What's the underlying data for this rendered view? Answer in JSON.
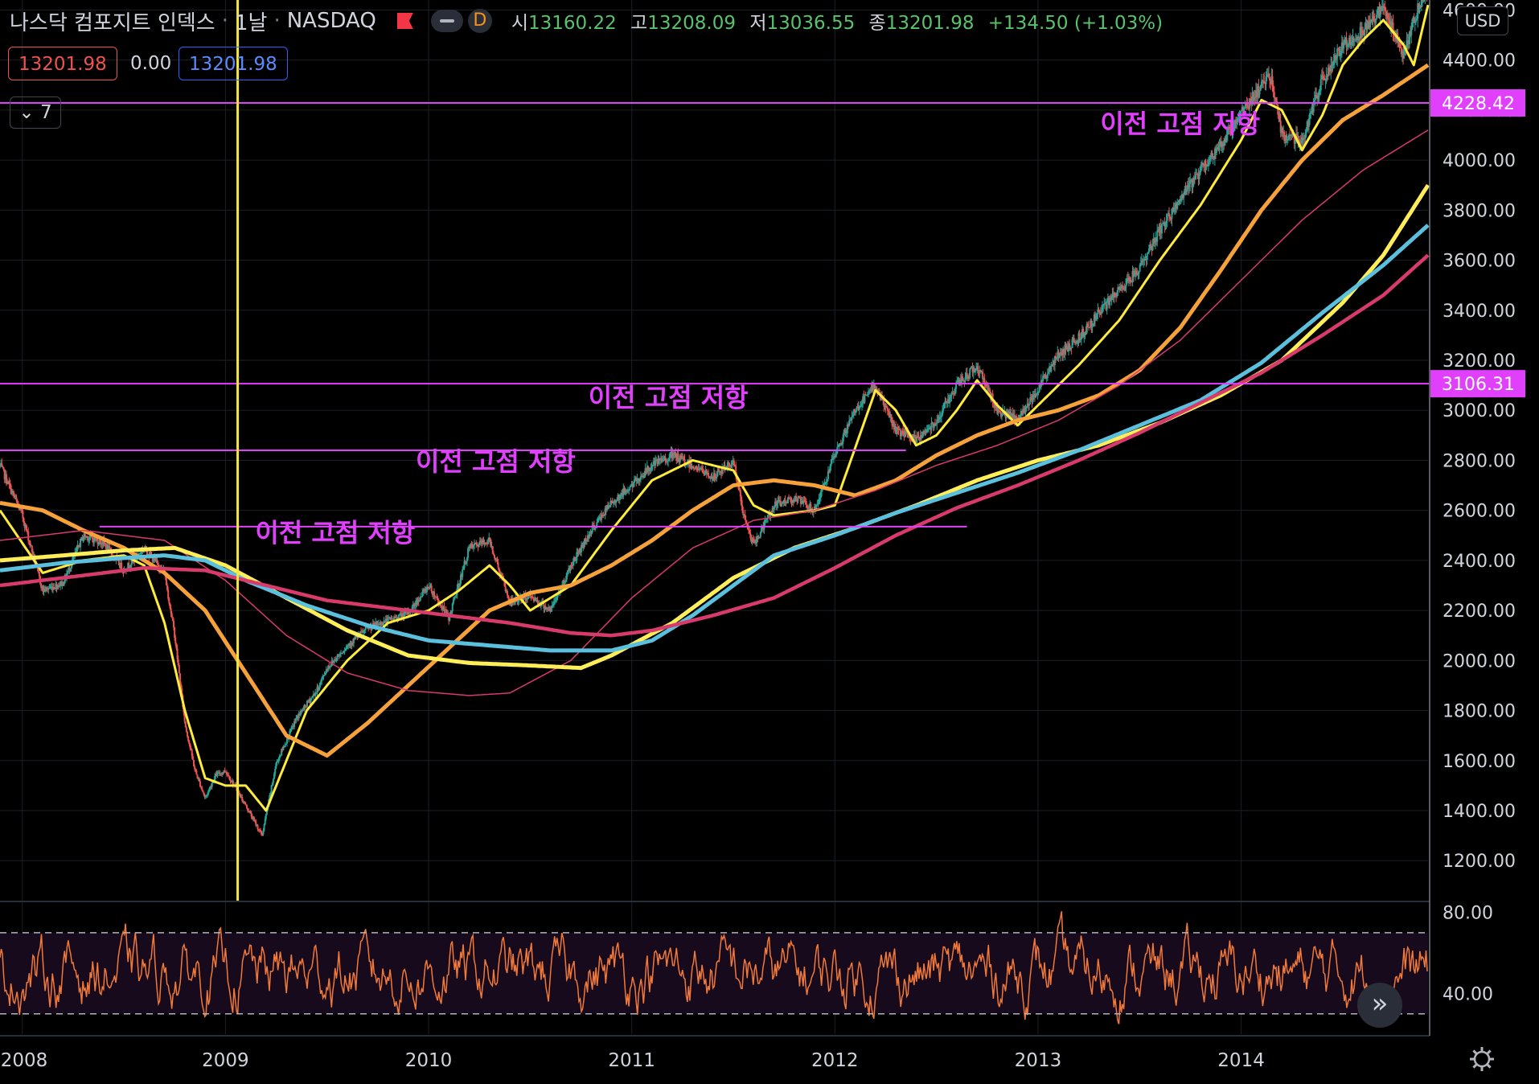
{
  "header": {
    "title": "나스닥 컴포지트 인덱스",
    "interval": "1날",
    "exchange": "NASDAQ",
    "interval_badge": "D",
    "ohlc": [
      {
        "k": "시",
        "v": "13160.22"
      },
      {
        "k": "고",
        "v": "13208.09"
      },
      {
        "k": "저",
        "v": "13036.55"
      },
      {
        "k": "종",
        "v": "13201.98"
      }
    ],
    "change": "+134.50 (+1.03%)"
  },
  "price_boxes": {
    "sell": "13201.98",
    "spread": "0.00",
    "buy": "13201.98"
  },
  "indicator_count": "7",
  "currency": "USD",
  "colors": {
    "magenta": "#e040fb",
    "yellow_line": "#ffeb3b",
    "vertical_line": "#f5e642",
    "sma_orange": "#f7a13b",
    "sma_yellow": "#ffee58",
    "sma_blue": "#5bc0de",
    "sma_red": "#d83a6b",
    "rsi": "#f0793a",
    "up": "#26a69a",
    "down": "#ef5350"
  },
  "chart_data": {
    "type": "line",
    "title": "나스닥 컴포지트 인덱스",
    "xlabel": "",
    "ylabel": "",
    "x_ticks": [
      "2008",
      "2009",
      "2010",
      "2011",
      "2012",
      "2013",
      "2014"
    ],
    "y_ticks": [
      "1200.00",
      "1400.00",
      "1600.00",
      "1800.00",
      "2000.00",
      "2200.00",
      "2400.00",
      "2600.00",
      "2800.00",
      "3000.00",
      "3200.00",
      "3400.00",
      "3600.00",
      "3800.00",
      "4000.00",
      "4200.00",
      "4400.00",
      "4600.00"
    ],
    "ylim": [
      1040,
      4640
    ],
    "xlim": [
      2007.89,
      2014.92
    ],
    "grid": true,
    "price": {
      "name": "",
      "x": [
        2007.89,
        2008.0,
        2008.1,
        2008.2,
        2008.3,
        2008.4,
        2008.5,
        2008.6,
        2008.7,
        2008.75,
        2008.8,
        2008.85,
        2008.9,
        2008.95,
        2009.0,
        2009.1,
        2009.18,
        2009.25,
        2009.35,
        2009.45,
        2009.5,
        2009.6,
        2009.7,
        2009.8,
        2009.9,
        2010.0,
        2010.1,
        2010.2,
        2010.3,
        2010.4,
        2010.5,
        2010.6,
        2010.7,
        2010.8,
        2010.9,
        2011.0,
        2011.1,
        2011.2,
        2011.3,
        2011.4,
        2011.5,
        2011.55,
        2011.6,
        2011.7,
        2011.8,
        2011.9,
        2012.0,
        2012.1,
        2012.2,
        2012.3,
        2012.4,
        2012.5,
        2012.6,
        2012.7,
        2012.8,
        2012.9,
        2013.0,
        2013.1,
        2013.2,
        2013.3,
        2013.4,
        2013.5,
        2013.6,
        2013.7,
        2013.8,
        2013.9,
        2014.0,
        2014.1,
        2014.15,
        2014.2,
        2014.3,
        2014.4,
        2014.5,
        2014.6,
        2014.7,
        2014.8,
        2014.85,
        2014.92
      ],
      "values": [
        2780,
        2580,
        2280,
        2310,
        2500,
        2470,
        2360,
        2450,
        2350,
        2100,
        1750,
        1560,
        1450,
        1540,
        1560,
        1420,
        1300,
        1590,
        1770,
        1880,
        1970,
        2060,
        2130,
        2160,
        2190,
        2300,
        2170,
        2450,
        2480,
        2230,
        2260,
        2200,
        2380,
        2520,
        2630,
        2700,
        2780,
        2820,
        2780,
        2730,
        2800,
        2580,
        2460,
        2620,
        2650,
        2600,
        2820,
        3000,
        3100,
        2920,
        2880,
        2960,
        3100,
        3180,
        3000,
        2960,
        3090,
        3220,
        3290,
        3390,
        3480,
        3570,
        3720,
        3840,
        3960,
        4060,
        4190,
        4300,
        4330,
        4100,
        4080,
        4320,
        4460,
        4520,
        4610,
        4420,
        4560,
        4700
      ]
    },
    "series": [
      {
        "name": "",
        "color": "#ffeb3b",
        "width": 3,
        "x": [
          2007.89,
          2008.1,
          2008.3,
          2008.5,
          2008.6,
          2008.7,
          2008.8,
          2008.9,
          2009.0,
          2009.1,
          2009.2,
          2009.3,
          2009.4,
          2009.5,
          2009.6,
          2009.8,
          2010.0,
          2010.15,
          2010.3,
          2010.4,
          2010.5,
          2010.7,
          2010.9,
          2011.1,
          2011.3,
          2011.4,
          2011.5,
          2011.6,
          2011.7,
          2011.9,
          2012.0,
          2012.1,
          2012.2,
          2012.3,
          2012.4,
          2012.5,
          2012.6,
          2012.7,
          2012.8,
          2012.9,
          2013.0,
          2013.2,
          2013.4,
          2013.6,
          2013.8,
          2014.0,
          2014.1,
          2014.2,
          2014.3,
          2014.4,
          2014.5,
          2014.6,
          2014.7,
          2014.8,
          2014.85,
          2014.92
        ],
        "values": [
          2600,
          2350,
          2400,
          2420,
          2380,
          2150,
          1800,
          1530,
          1500,
          1500,
          1400,
          1600,
          1800,
          1900,
          2000,
          2150,
          2200,
          2280,
          2380,
          2300,
          2200,
          2300,
          2520,
          2720,
          2800,
          2780,
          2760,
          2620,
          2580,
          2600,
          2620,
          2850,
          3080,
          3000,
          2860,
          2900,
          3000,
          3120,
          3020,
          2940,
          3020,
          3180,
          3360,
          3600,
          3820,
          4080,
          4240,
          4200,
          4040,
          4180,
          4380,
          4480,
          4560,
          4460,
          4380,
          4620
        ]
      },
      {
        "name": "",
        "color": "#f7a13b",
        "width": 5,
        "x": [
          2007.89,
          2008.1,
          2008.3,
          2008.5,
          2008.7,
          2008.9,
          2009.1,
          2009.3,
          2009.5,
          2009.7,
          2009.9,
          2010.1,
          2010.3,
          2010.5,
          2010.7,
          2010.9,
          2011.1,
          2011.3,
          2011.5,
          2011.7,
          2011.9,
          2012.1,
          2012.3,
          2012.5,
          2012.7,
          2012.9,
          2013.1,
          2013.3,
          2013.5,
          2013.7,
          2013.9,
          2014.1,
          2014.3,
          2014.5,
          2014.7,
          2014.92
        ],
        "values": [
          2630,
          2600,
          2520,
          2450,
          2350,
          2200,
          1950,
          1700,
          1620,
          1750,
          1900,
          2050,
          2200,
          2270,
          2300,
          2380,
          2480,
          2600,
          2700,
          2720,
          2700,
          2660,
          2720,
          2820,
          2900,
          2960,
          3000,
          3060,
          3160,
          3330,
          3560,
          3800,
          4000,
          4160,
          4260,
          4380
        ]
      },
      {
        "name": "",
        "color": "#d83a6b",
        "width": 1.5,
        "x": [
          2007.89,
          2008.3,
          2008.7,
          2009.0,
          2009.3,
          2009.6,
          2009.9,
          2010.2,
          2010.4,
          2010.7,
          2011.0,
          2011.3,
          2011.6,
          2011.9,
          2012.2,
          2012.5,
          2012.8,
          2013.1,
          2013.4,
          2013.7,
          2014.0,
          2014.3,
          2014.6,
          2014.92
        ],
        "values": [
          2480,
          2520,
          2480,
          2320,
          2100,
          1950,
          1880,
          1860,
          1870,
          2000,
          2250,
          2450,
          2560,
          2600,
          2680,
          2780,
          2860,
          2960,
          3100,
          3280,
          3520,
          3760,
          3960,
          4120
        ]
      },
      {
        "name": "",
        "color": "#ffee58",
        "width": 5,
        "x": [
          2007.89,
          2008.2,
          2008.5,
          2008.75,
          2009.0,
          2009.3,
          2009.6,
          2009.9,
          2010.2,
          2010.5,
          2010.75,
          2010.9,
          2011.2,
          2011.5,
          2011.8,
          2012.1,
          2012.4,
          2012.7,
          2013.0,
          2013.3,
          2013.6,
          2013.9,
          2014.2,
          2014.5,
          2014.7,
          2014.92
        ],
        "values": [
          2400,
          2420,
          2440,
          2450,
          2380,
          2250,
          2120,
          2020,
          1990,
          1980,
          1970,
          2020,
          2150,
          2330,
          2450,
          2530,
          2620,
          2720,
          2800,
          2860,
          2950,
          3060,
          3200,
          3430,
          3620,
          3900
        ]
      },
      {
        "name": "",
        "color": "#5bc0de",
        "width": 5,
        "x": [
          2007.89,
          2008.2,
          2008.5,
          2008.7,
          2008.9,
          2009.1,
          2009.4,
          2009.7,
          2010.0,
          2010.3,
          2010.6,
          2010.9,
          2011.1,
          2011.3,
          2011.5,
          2011.7,
          2012.0,
          2012.3,
          2012.6,
          2012.9,
          2013.2,
          2013.5,
          2013.8,
          2014.1,
          2014.4,
          2014.7,
          2014.92
        ],
        "values": [
          2360,
          2390,
          2410,
          2420,
          2400,
          2320,
          2220,
          2140,
          2080,
          2060,
          2040,
          2040,
          2080,
          2180,
          2300,
          2420,
          2500,
          2590,
          2670,
          2750,
          2840,
          2940,
          3040,
          3190,
          3390,
          3580,
          3740
        ]
      },
      {
        "name": "",
        "color": "#d83a6b",
        "width": 4.5,
        "x": [
          2007.89,
          2008.3,
          2008.6,
          2008.9,
          2009.2,
          2009.5,
          2009.8,
          2010.1,
          2010.4,
          2010.7,
          2010.9,
          2011.1,
          2011.4,
          2011.7,
          2012.0,
          2012.3,
          2012.6,
          2012.9,
          2013.2,
          2013.5,
          2013.8,
          2014.1,
          2014.4,
          2014.7,
          2014.92
        ],
        "values": [
          2300,
          2340,
          2370,
          2360,
          2300,
          2240,
          2210,
          2180,
          2150,
          2110,
          2100,
          2120,
          2180,
          2250,
          2370,
          2500,
          2610,
          2700,
          2800,
          2910,
          3030,
          3150,
          3300,
          3460,
          3620
        ]
      }
    ],
    "horizontal_lines": [
      {
        "value": "4228.42",
        "color": "#e040fb",
        "x_start": 2007.89
      },
      {
        "value": "3106.31",
        "color": "#e040fb",
        "x_start": 2007.89
      },
      {
        "value": 2840,
        "x_start": 2007.89,
        "x_end": 2012.35,
        "color": "#e040fb"
      },
      {
        "value": 2535,
        "x_start": 2008.38,
        "x_end": 2012.65,
        "color": "#e040fb"
      }
    ],
    "vertical_line": {
      "x": 2009.06,
      "color": "#f5e642"
    },
    "annotations": [
      {
        "text": "이전 고점 저항",
        "x": 2013.7,
        "y": 4110
      },
      {
        "text": "이전 고점 저항",
        "x": 2011.18,
        "y": 3015
      },
      {
        "text": "이전 고점 저항",
        "x": 2010.33,
        "y": 2760
      },
      {
        "text": "이전 고점 저항",
        "x": 2009.54,
        "y": 2475
      }
    ],
    "rsi": {
      "y_ticks": [
        "80.00",
        "40.00"
      ],
      "ylim": [
        20,
        85
      ],
      "levels": [
        70,
        30
      ],
      "pane_bg": "#160a1c",
      "color": "#f0793a"
    }
  }
}
